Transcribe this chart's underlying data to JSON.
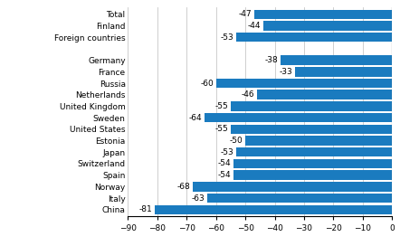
{
  "categories": [
    "China",
    "Italy",
    "Norway",
    "Spain",
    "Switzerland",
    "Japan",
    "Estonia",
    "United States",
    "Sweden",
    "United Kingdom",
    "Netherlands",
    "Russia",
    "France",
    "Germany",
    "",
    "Foreign countries",
    "Finland",
    "Total"
  ],
  "values": [
    -81,
    -63,
    -68,
    -54,
    -54,
    -53,
    -50,
    -55,
    -64,
    -55,
    -46,
    -60,
    -33,
    -38,
    null,
    -53,
    -44,
    -47
  ],
  "bar_color": "#1a7bbf",
  "xlim": [
    -90,
    0
  ],
  "xticks": [
    -90,
    -80,
    -70,
    -60,
    -50,
    -40,
    -30,
    -20,
    -10,
    0
  ],
  "grid_color": "#c8c8c8",
  "label_fontsize": 6.5,
  "value_fontsize": 6.5,
  "bar_height": 0.82
}
